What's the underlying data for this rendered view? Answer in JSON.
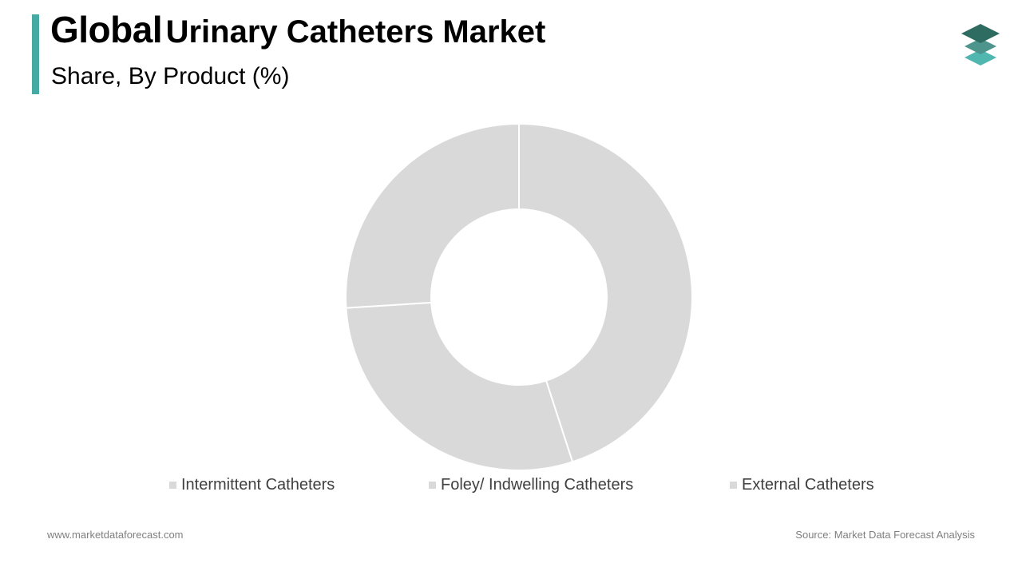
{
  "header": {
    "title_bold": "Global",
    "title_rest": "Urinary Catheters Market",
    "subtitle": "Share, By Product (%)"
  },
  "colors": {
    "accent": "#45aaa3",
    "slice": "#d9d9d9",
    "slice_border": "#ffffff",
    "logo_dark": "#2e6b61",
    "logo_mid": "#4d958c",
    "logo_light": "#4fb6b0"
  },
  "chart_data": {
    "type": "pie",
    "variant": "donut",
    "categories": [
      "Intermittent Catheters",
      "Foley/ Indwelling Catheters",
      "External Catheters"
    ],
    "values": [
      45,
      29,
      26
    ],
    "unit": "%",
    "data_labels_shown": false,
    "legend": "bottom"
  },
  "footer": {
    "website": "www.marketdataforecast.com",
    "source": "Source: Market Data Forecast Analysis"
  }
}
